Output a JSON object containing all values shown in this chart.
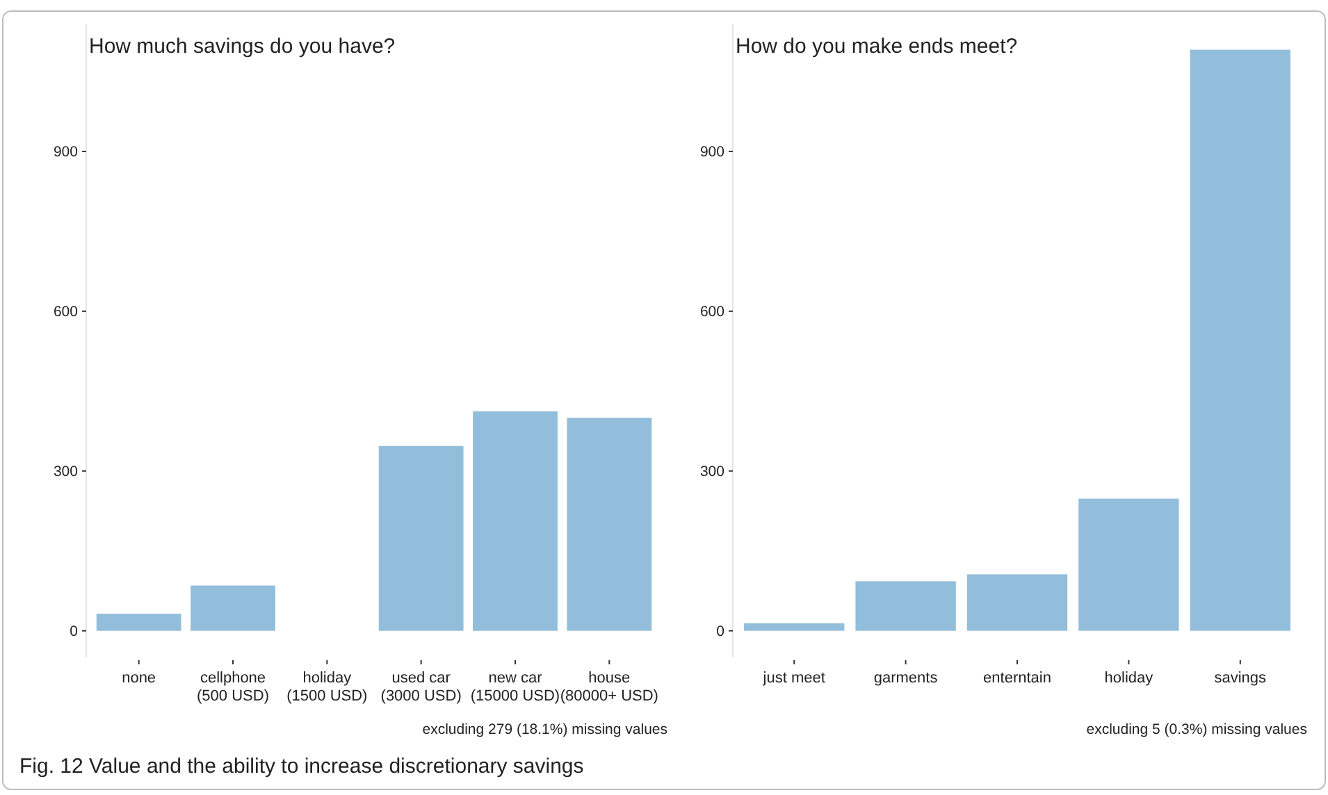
{
  "chart_data": [
    {
      "type": "bar",
      "title": "How much savings do you have?",
      "categories": [
        "none",
        "cellphone\n(500 USD)",
        "holiday\n(1500 USD)",
        "used car\n(3000 USD)",
        "new car\n(15000 USD)",
        "house\n(80000+ USD)"
      ],
      "values": [
        32,
        85,
        0,
        347,
        412,
        400
      ],
      "color": "#92bedb",
      "ylim": [
        -50,
        1140
      ],
      "yticks": [
        0,
        300,
        600,
        900
      ],
      "grid": false,
      "annotations": [
        "excluding 279 (18.1%) missing values",
        "Fig. 12  Value and the ability to increase discretionary savings"
      ]
    },
    {
      "type": "bar",
      "title": "How do you make ends meet?",
      "categories": [
        "just meet",
        "garments",
        "enterntain",
        "holiday",
        "savings"
      ],
      "values": [
        14,
        93,
        106,
        248,
        1091
      ],
      "color": "#92bedb",
      "ylim": [
        -50,
        1140
      ],
      "yticks": [
        0,
        300,
        600,
        900
      ],
      "grid": false,
      "annotations": [
        "excluding 5 (0.3%) missing values"
      ]
    }
  ]
}
